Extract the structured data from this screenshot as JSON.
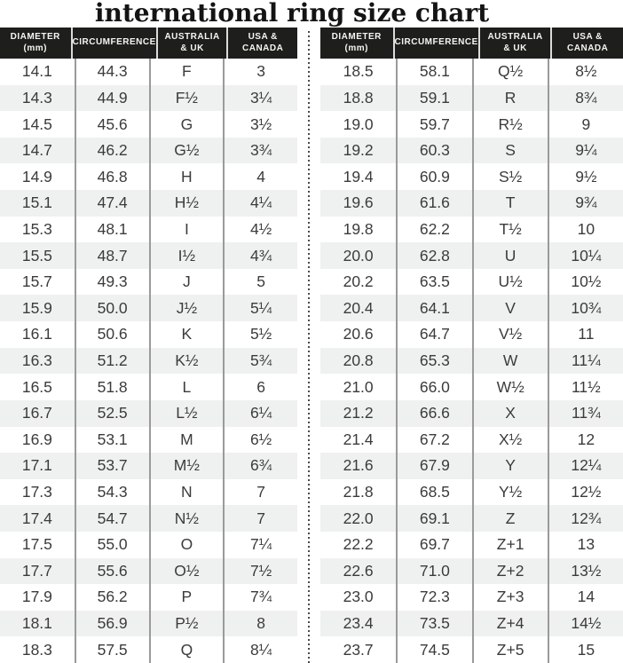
{
  "title": "international ring size chart",
  "colors": {
    "header_bg": "#1e1e1c",
    "header_text": "#f6f5f1",
    "row_alt_bg": "#eff1f1",
    "row_text": "#3b3b3b",
    "grid_line": "#9a9a9a",
    "dotted_divider": "#4a4a4a"
  },
  "columns": [
    {
      "label": "DIAMETER\n(mm)"
    },
    {
      "label": "CIRCUMFERENCE"
    },
    {
      "label": "AUSTRALIA\n& UK"
    },
    {
      "label": "USA &\nCANADA"
    }
  ],
  "tables": [
    {
      "side": "left",
      "rows": [
        [
          "14.1",
          "44.3",
          "F",
          "3"
        ],
        [
          "14.3",
          "44.9",
          "F½",
          "3¼"
        ],
        [
          "14.5",
          "45.6",
          "G",
          "3½"
        ],
        [
          "14.7",
          "46.2",
          "G½",
          "3¾"
        ],
        [
          "14.9",
          "46.8",
          "H",
          "4"
        ],
        [
          "15.1",
          "47.4",
          "H½",
          "4¼"
        ],
        [
          "15.3",
          "48.1",
          "I",
          "4½"
        ],
        [
          "15.5",
          "48.7",
          "I½",
          "4¾"
        ],
        [
          "15.7",
          "49.3",
          "J",
          "5"
        ],
        [
          "15.9",
          "50.0",
          "J½",
          "5¼"
        ],
        [
          "16.1",
          "50.6",
          "K",
          "5½"
        ],
        [
          "16.3",
          "51.2",
          "K½",
          "5¾"
        ],
        [
          "16.5",
          "51.8",
          "L",
          "6"
        ],
        [
          "16.7",
          "52.5",
          "L½",
          "6¼"
        ],
        [
          "16.9",
          "53.1",
          "M",
          "6½"
        ],
        [
          "17.1",
          "53.7",
          "M½",
          "6¾"
        ],
        [
          "17.3",
          "54.3",
          "N",
          "7"
        ],
        [
          "17.4",
          "54.7",
          "N½",
          "7"
        ],
        [
          "17.5",
          "55.0",
          "O",
          "7¼"
        ],
        [
          "17.7",
          "55.6",
          "O½",
          "7½"
        ],
        [
          "17.9",
          "56.2",
          "P",
          "7¾"
        ],
        [
          "18.1",
          "56.9",
          "P½",
          "8"
        ],
        [
          "18.3",
          "57.5",
          "Q",
          "8¼"
        ]
      ]
    },
    {
      "side": "right",
      "rows": [
        [
          "18.5",
          "58.1",
          "Q½",
          "8½"
        ],
        [
          "18.8",
          "59.1",
          "R",
          "8¾"
        ],
        [
          "19.0",
          "59.7",
          "R½",
          "9"
        ],
        [
          "19.2",
          "60.3",
          "S",
          "9¼"
        ],
        [
          "19.4",
          "60.9",
          "S½",
          "9½"
        ],
        [
          "19.6",
          "61.6",
          "T",
          "9¾"
        ],
        [
          "19.8",
          "62.2",
          "T½",
          "10"
        ],
        [
          "20.0",
          "62.8",
          "U",
          "10¼"
        ],
        [
          "20.2",
          "63.5",
          "U½",
          "10½"
        ],
        [
          "20.4",
          "64.1",
          "V",
          "10¾"
        ],
        [
          "20.6",
          "64.7",
          "V½",
          "11"
        ],
        [
          "20.8",
          "65.3",
          "W",
          "11¼"
        ],
        [
          "21.0",
          "66.0",
          "W½",
          "11½"
        ],
        [
          "21.2",
          "66.6",
          "X",
          "11¾"
        ],
        [
          "21.4",
          "67.2",
          "X½",
          "12"
        ],
        [
          "21.6",
          "67.9",
          "Y",
          "12¼"
        ],
        [
          "21.8",
          "68.5",
          "Y½",
          "12½"
        ],
        [
          "22.0",
          "69.1",
          "Z",
          "12¾"
        ],
        [
          "22.2",
          "69.7",
          "Z+1",
          "13"
        ],
        [
          "22.6",
          "71.0",
          "Z+2",
          "13½"
        ],
        [
          "23.0",
          "72.3",
          "Z+3",
          "14"
        ],
        [
          "23.4",
          "73.5",
          "Z+4",
          "14½"
        ],
        [
          "23.7",
          "74.5",
          "Z+5",
          "15"
        ]
      ]
    }
  ]
}
